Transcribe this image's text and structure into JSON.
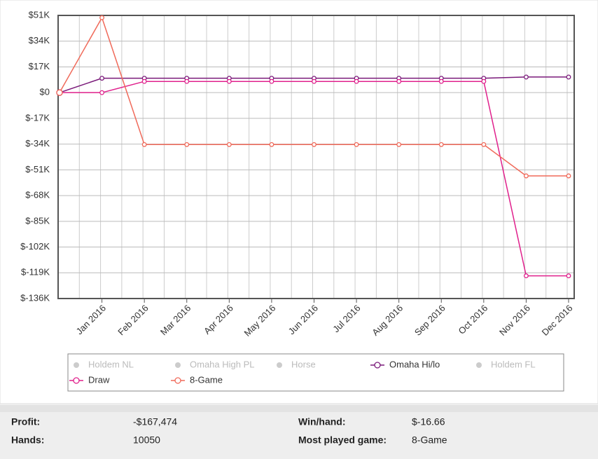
{
  "chart_data": {
    "type": "line",
    "categories": [
      null,
      "Jan 2016",
      "Feb 2016",
      "Mar 2016",
      "Apr 2016",
      "May 2016",
      "Jun 2016",
      "Jul 2016",
      "Aug 2016",
      "Sep 2016",
      "Oct 2016",
      "Nov 2016",
      "Dec 2016"
    ],
    "ylim": [
      -136000,
      51000
    ],
    "yticks": [
      {
        "value": 51000,
        "label": "$51K"
      },
      {
        "value": 34000,
        "label": "$34K"
      },
      {
        "value": 17000,
        "label": "$17K"
      },
      {
        "value": 0,
        "label": "$0"
      },
      {
        "value": -17000,
        "label": "$-17K"
      },
      {
        "value": -34000,
        "label": "$-34K"
      },
      {
        "value": -51000,
        "label": "$-51K"
      },
      {
        "value": -68000,
        "label": "$-68K"
      },
      {
        "value": -85000,
        "label": "$-85K"
      },
      {
        "value": -102000,
        "label": "$-102K"
      },
      {
        "value": -119000,
        "label": "$-119K"
      },
      {
        "value": -136000,
        "label": "$-136K"
      }
    ],
    "grid": true,
    "legend": [
      {
        "name": "Holdem NL",
        "color": "#cccccc",
        "visible": false
      },
      {
        "name": "Omaha High PL",
        "color": "#cccccc",
        "visible": false
      },
      {
        "name": "Horse",
        "color": "#cccccc",
        "visible": false
      },
      {
        "series": 0
      },
      {
        "name": "Holdem FL",
        "color": "#cccccc",
        "visible": false
      },
      {
        "series": 1
      },
      {
        "series": 2
      }
    ],
    "series": [
      {
        "name": "Omaha Hi/lo",
        "color": "#7a1a7a",
        "values": [
          0,
          9500,
          9500,
          9500,
          9500,
          9500,
          9500,
          9500,
          9500,
          9500,
          9500,
          10300,
          10300
        ]
      },
      {
        "name": "Draw",
        "color": "#e0208c",
        "values": [
          0,
          0,
          7400,
          7400,
          7400,
          7400,
          7400,
          7400,
          7400,
          7400,
          7400,
          -121000,
          -121000
        ]
      },
      {
        "name": "8-Game",
        "color": "#f06a5a",
        "values": [
          0,
          49500,
          -34300,
          -34300,
          -34300,
          -34300,
          -34300,
          -34300,
          -34300,
          -34300,
          -34300,
          -55000,
          -55000
        ]
      }
    ]
  },
  "summary": {
    "rows": [
      [
        {
          "label": "Profit:",
          "value": "-$167,474"
        },
        {
          "label": "Win/hand:",
          "value": "$-16.66"
        }
      ],
      [
        {
          "label": "Hands:",
          "value": "10050"
        },
        {
          "label": "Most played game:",
          "value": "8-Game"
        }
      ]
    ]
  }
}
